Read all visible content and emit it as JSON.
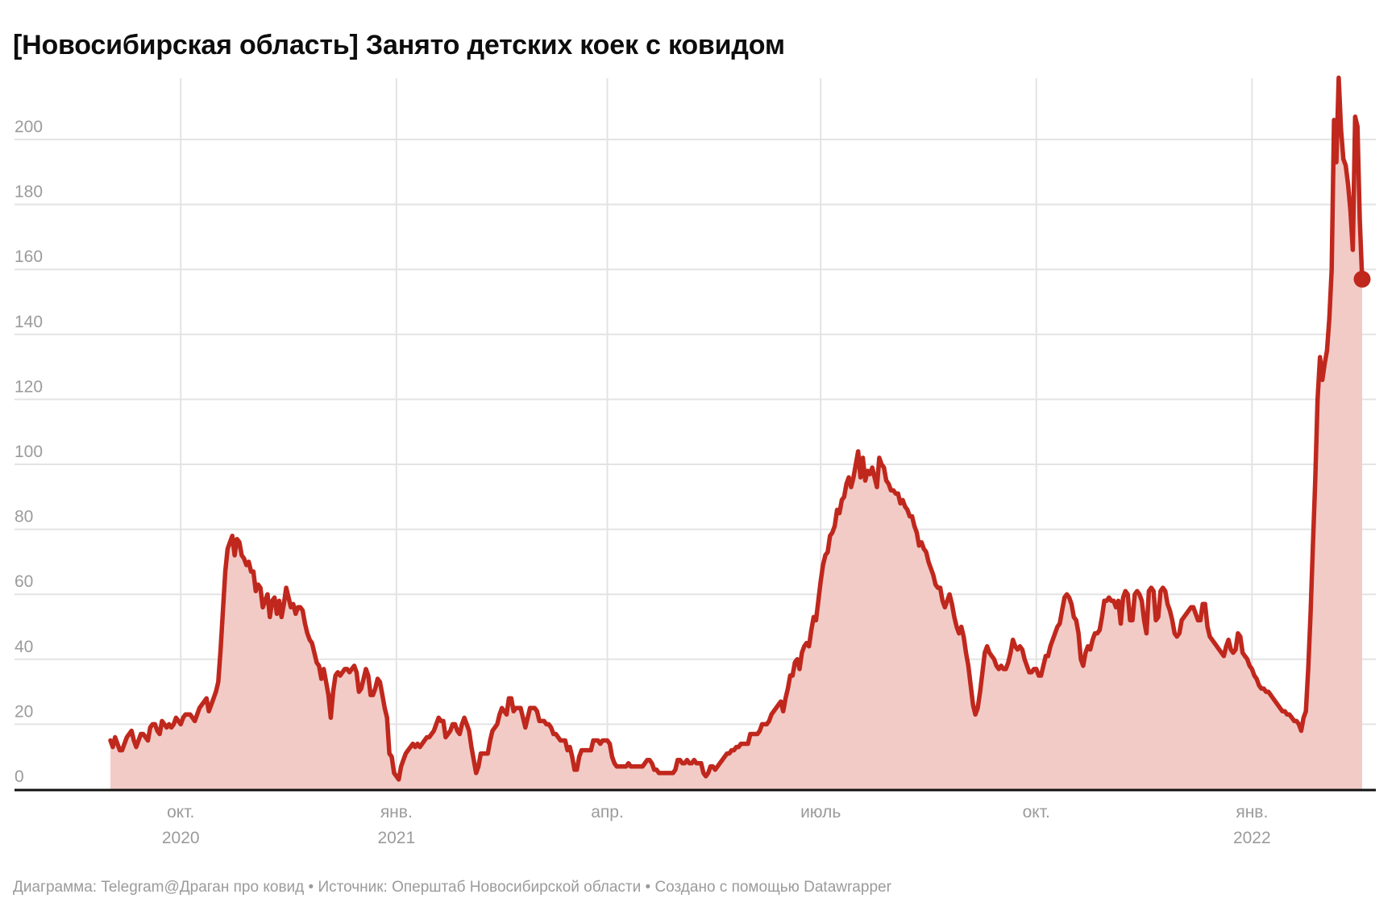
{
  "chart": {
    "title": "[Новосибирская область] Занято детских коек с ковидом",
    "footer": "Диаграмма: Telegram@Драган про ковид • Источник: Оперштаб Новосибирской области • Создано с помощью Datawrapper"
  },
  "chart_data": {
    "type": "area",
    "title": "[Новосибирская область] Занято детских коек с ковидом",
    "series_name": "Занято детских коек с ковидом",
    "frequency": "daily",
    "x_start_date": "2020-09-01",
    "x_end_date": "2022-02-17",
    "ylim": [
      0,
      220
    ],
    "grid": true,
    "y_ticks": [
      0,
      20,
      40,
      60,
      80,
      100,
      120,
      140,
      160,
      180,
      200
    ],
    "x_ticks": [
      {
        "label": "окт.",
        "year": "2020",
        "date": "2020-10-01"
      },
      {
        "label": "янв.",
        "year": "2021",
        "date": "2021-01-01"
      },
      {
        "label": "апр.",
        "year": "",
        "date": "2021-04-01"
      },
      {
        "label": "июль",
        "year": "",
        "date": "2021-07-01"
      },
      {
        "label": "окт.",
        "year": "",
        "date": "2021-10-01"
      },
      {
        "label": "янв.",
        "year": "2022",
        "date": "2022-01-01"
      }
    ],
    "last_value": 157,
    "max_value": 219,
    "colors": {
      "line": "#c0281d",
      "fill": "#f2cbc7",
      "grid": "#e3e3e3",
      "axis": "#111111",
      "tick_text": "#9b9b9b"
    },
    "values": [
      15,
      13,
      16,
      14,
      12,
      12,
      14,
      16,
      17,
      18,
      15,
      13,
      15,
      17,
      17,
      16,
      15,
      19,
      20,
      20,
      18,
      17,
      21,
      20,
      19,
      20,
      19,
      20,
      22,
      21,
      20,
      22,
      23,
      23,
      23,
      22,
      21,
      23,
      25,
      26,
      27,
      28,
      24,
      26,
      28,
      30,
      33,
      43,
      55,
      67,
      74,
      76,
      78,
      72,
      77,
      76,
      72,
      71,
      69,
      70,
      67,
      67,
      61,
      63,
      62,
      56,
      58,
      60,
      53,
      58,
      59,
      54,
      58,
      53,
      57,
      62,
      59,
      56,
      57,
      54,
      56,
      56,
      55,
      51,
      48,
      46,
      45,
      42,
      39,
      38,
      34,
      37,
      33,
      29,
      22,
      30,
      35,
      36,
      35,
      36,
      37,
      37,
      36,
      37,
      38,
      36,
      30,
      31,
      34,
      37,
      35,
      29,
      29,
      31,
      34,
      33,
      29,
      25,
      22,
      11,
      10,
      5,
      4,
      3,
      7,
      9,
      11,
      12,
      13,
      14,
      13,
      14,
      13,
      14,
      15,
      16,
      16,
      17,
      18,
      20,
      22,
      21,
      21,
      16,
      17,
      18,
      20,
      20,
      18,
      17,
      20,
      22,
      20,
      18,
      13,
      9,
      5,
      7,
      11,
      11,
      11,
      11,
      15,
      18,
      19,
      20,
      23,
      25,
      24,
      23,
      28,
      28,
      24,
      25,
      25,
      25,
      22,
      19,
      22,
      25,
      25,
      25,
      24,
      21,
      21,
      21,
      20,
      20,
      19,
      17,
      17,
      16,
      15,
      15,
      15,
      12,
      13,
      10,
      6,
      6,
      10,
      12,
      12,
      12,
      12,
      12,
      15,
      15,
      15,
      14,
      15,
      15,
      15,
      14,
      10,
      8,
      7,
      7,
      7,
      7,
      7,
      8,
      7,
      7,
      7,
      7,
      7,
      7,
      8,
      9,
      9,
      8,
      6,
      6,
      5,
      5,
      5,
      5,
      5,
      5,
      5,
      6,
      9,
      9,
      8,
      8,
      9,
      8,
      8,
      9,
      8,
      8,
      8,
      5,
      4,
      5,
      7,
      7,
      6,
      7,
      8,
      9,
      10,
      11,
      11,
      12,
      12,
      13,
      13,
      14,
      14,
      14,
      14,
      17,
      17,
      17,
      17,
      18,
      20,
      20,
      20,
      21,
      23,
      24,
      25,
      26,
      27,
      24,
      28,
      31,
      35,
      35,
      39,
      40,
      37,
      42,
      44,
      45,
      44,
      49,
      53,
      52,
      58,
      64,
      69,
      72,
      73,
      78,
      79,
      81,
      86,
      85,
      89,
      90,
      94,
      96,
      93,
      96,
      100,
      104,
      96,
      102,
      95,
      98,
      97,
      99,
      96,
      93,
      102,
      100,
      99,
      95,
      94,
      92,
      92,
      91,
      91,
      88,
      89,
      87,
      86,
      84,
      84,
      81,
      79,
      75,
      76,
      74,
      73,
      70,
      68,
      66,
      63,
      62,
      62,
      58,
      56,
      58,
      60,
      57,
      53,
      50,
      48,
      50,
      47,
      42,
      38,
      32,
      26,
      23,
      25,
      30,
      36,
      42,
      44,
      42,
      41,
      40,
      38,
      37,
      38,
      37,
      37,
      39,
      42,
      46,
      44,
      43,
      44,
      43,
      40,
      38,
      36,
      36,
      37,
      37,
      35,
      35,
      38,
      41,
      41,
      44,
      46,
      48,
      50,
      51,
      55,
      59,
      60,
      59,
      57,
      53,
      52,
      48,
      40,
      38,
      42,
      44,
      43,
      46,
      48,
      48,
      49,
      53,
      58,
      58,
      59,
      58,
      58,
      56,
      58,
      51,
      59,
      61,
      60,
      52,
      52,
      60,
      61,
      60,
      58,
      52,
      48,
      61,
      62,
      61,
      52,
      53,
      61,
      62,
      61,
      57,
      55,
      52,
      48,
      47,
      48,
      52,
      53,
      54,
      55,
      56,
      56,
      54,
      52,
      52,
      57,
      57,
      50,
      47,
      46,
      45,
      44,
      43,
      42,
      41,
      44,
      46,
      43,
      42,
      43,
      48,
      47,
      42,
      41,
      40,
      38,
      37,
      35,
      34,
      32,
      31,
      31,
      30,
      30,
      29,
      28,
      27,
      26,
      25,
      24,
      24,
      23,
      23,
      22,
      21,
      21,
      20,
      18,
      22,
      24,
      37,
      54,
      75,
      95,
      120,
      133,
      126,
      131,
      135,
      145,
      160,
      206,
      193,
      219,
      203,
      194,
      192,
      186,
      178,
      166,
      207,
      204,
      175,
      157
    ]
  }
}
